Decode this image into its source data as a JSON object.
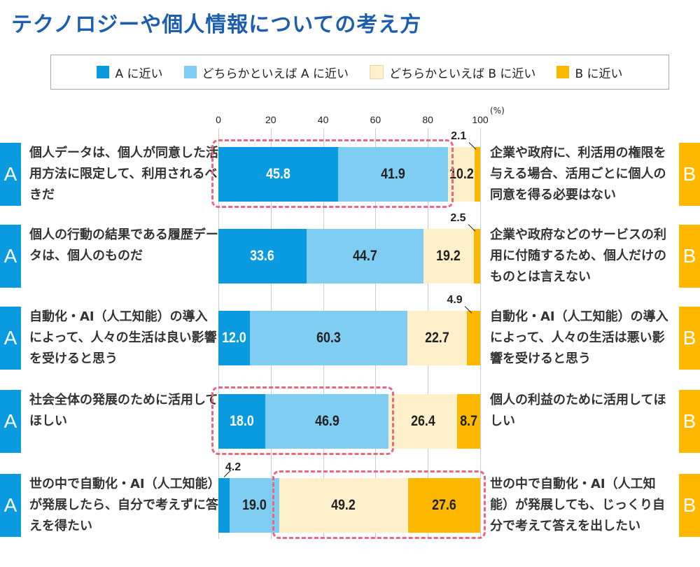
{
  "title": "テクノロジーや個人情報についての考え方",
  "chart_data": {
    "type": "bar",
    "orientation": "horizontal-stacked",
    "unit": "(%)",
    "xlim": [
      0,
      100
    ],
    "ticks": [
      "0",
      "20",
      "40",
      "60",
      "80",
      "100"
    ],
    "grid": true,
    "legend_position": "top",
    "series": [
      {
        "name": "A に近い",
        "color": "#0a9ae0"
      },
      {
        "name": "どちらかといえば A に近い",
        "color": "#7fcdf3"
      },
      {
        "name": "どちらかといえば B に近い",
        "color": "#fff0cc"
      },
      {
        "name": "B に近い",
        "color": "#ffb800"
      }
    ],
    "rows": [
      {
        "a_label": "A",
        "a_text": "個人データは、個人が同意した活用方法に限定して、利用されるべきだ",
        "b_label": "B",
        "b_text": "企業や政府に、利活用の権限を与える場合、活用ごとに個人の同意を得る必要はない",
        "values": [
          "45.8",
          "41.9",
          "10.2",
          "2.1"
        ],
        "highlight": [
          0,
          1
        ]
      },
      {
        "a_label": "A",
        "a_text": "個人の行動の結果である履歴データは、個人のものだ",
        "b_label": "B",
        "b_text": "企業や政府などのサービスの利用に付随するため、個人だけのものとは言えない",
        "values": [
          "33.6",
          "44.7",
          "19.2",
          "2.5"
        ],
        "highlight": []
      },
      {
        "a_label": "A",
        "a_text": "自動化・AI（人工知能）の導入によって、人々の生活は良い影響を受けると思う",
        "b_label": "B",
        "b_text": "自動化・AI（人工知能）の導入によって、人々の生活は悪い影響を受けると思う",
        "values": [
          "12.0",
          "60.3",
          "22.7",
          "4.9"
        ],
        "highlight": []
      },
      {
        "a_label": "A",
        "a_text": "社会全体の発展のために活用してほしい",
        "b_label": "B",
        "b_text": "個人の利益のために活用してほしい",
        "values": [
          "18.0",
          "46.9",
          "26.4",
          "8.7"
        ],
        "highlight": [
          0,
          1
        ]
      },
      {
        "a_label": "A",
        "a_text": "世の中で自動化・AI（人工知能）が発展したら、自分で考えずに答えを得たい",
        "b_label": "B",
        "b_text": "世の中で自動化・AI（人工知能）が発展しても、じっくり自分で考えて答えを出したい",
        "values": [
          "4.2",
          "19.0",
          "49.2",
          "27.6"
        ],
        "highlight": [
          2,
          3
        ]
      }
    ]
  }
}
